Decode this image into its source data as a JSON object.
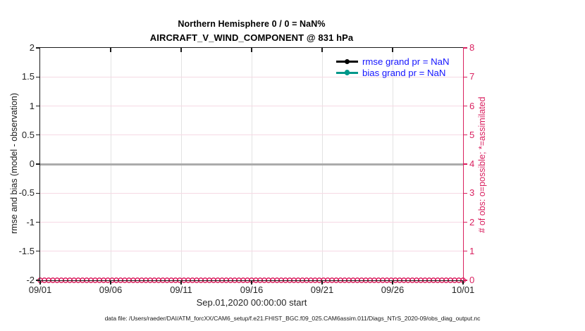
{
  "figure": {
    "title_line1": "Northern Hemisphere 0 / 0 = NaN%",
    "title_line2": "AIRCRAFT_V_WIND_COMPONENT @ 831 hPa",
    "footer": "data file: /Users/raeder/DAI/ATM_forcXX/CAM6_setup/f.e21.FHIST_BGC.f09_025.CAM6assim.011/Diags_NTrS_2020-09/obs_diag_output.nc"
  },
  "colors": {
    "accent_pink": "#d9205f",
    "grid_pink": "#f6d9e4",
    "grid_gray": "#e3e3e3",
    "zero_line_gray": "#ababab",
    "axis_black": "#1a1a1a",
    "tick_text": "#262626",
    "legend_blue": "#1414ff",
    "rmse_black": "#000000",
    "bias_teal": "#00978a"
  },
  "chart_data": {
    "type": "line",
    "title": [
      "Northern Hemisphere 0 / 0 = NaN%",
      "AIRCRAFT_V_WIND_COMPONENT @ 831 hPa"
    ],
    "xlabel": "Sep.01,2020 00:00:00 start",
    "ylabel_left": "rmse and bias (model - observation)",
    "ylabel_right": "# of obs: o=possible; *=assimilated",
    "x_tick_labels": [
      "09/01",
      "09/06",
      "09/11",
      "09/16",
      "09/21",
      "09/26",
      "10/01"
    ],
    "x_range_days": 30,
    "y_left_ticks": [
      "2",
      "1.5",
      "1",
      "0.5",
      "0",
      "-0.5",
      "-1",
      "-1.5",
      "-2"
    ],
    "y_left_range": [
      -2,
      2
    ],
    "y_right_ticks": [
      "8",
      "7",
      "6",
      "5",
      "4",
      "3",
      "2",
      "1",
      "0"
    ],
    "y_right_range": [
      0,
      8
    ],
    "grid": {
      "horizontal_pink": true,
      "vertical_gray": true
    },
    "zero_reference_line": 0,
    "series": [
      {
        "name": "rmse",
        "grand_pr": "NaN",
        "color": "#000000",
        "values": []
      },
      {
        "name": "bias",
        "grand_pr": "NaN",
        "color": "#00978a",
        "values": []
      }
    ],
    "obs_markers": {
      "symbol": "o",
      "axis": "right",
      "value": 0,
      "n": 101
    },
    "legend": [
      {
        "label": "rmse grand pr = NaN",
        "color": "#000000"
      },
      {
        "label": "bias grand pr = NaN",
        "color": "#00978a"
      }
    ],
    "legend_position": "upper-right-inside",
    "legend_text_color": "#1414ff"
  }
}
